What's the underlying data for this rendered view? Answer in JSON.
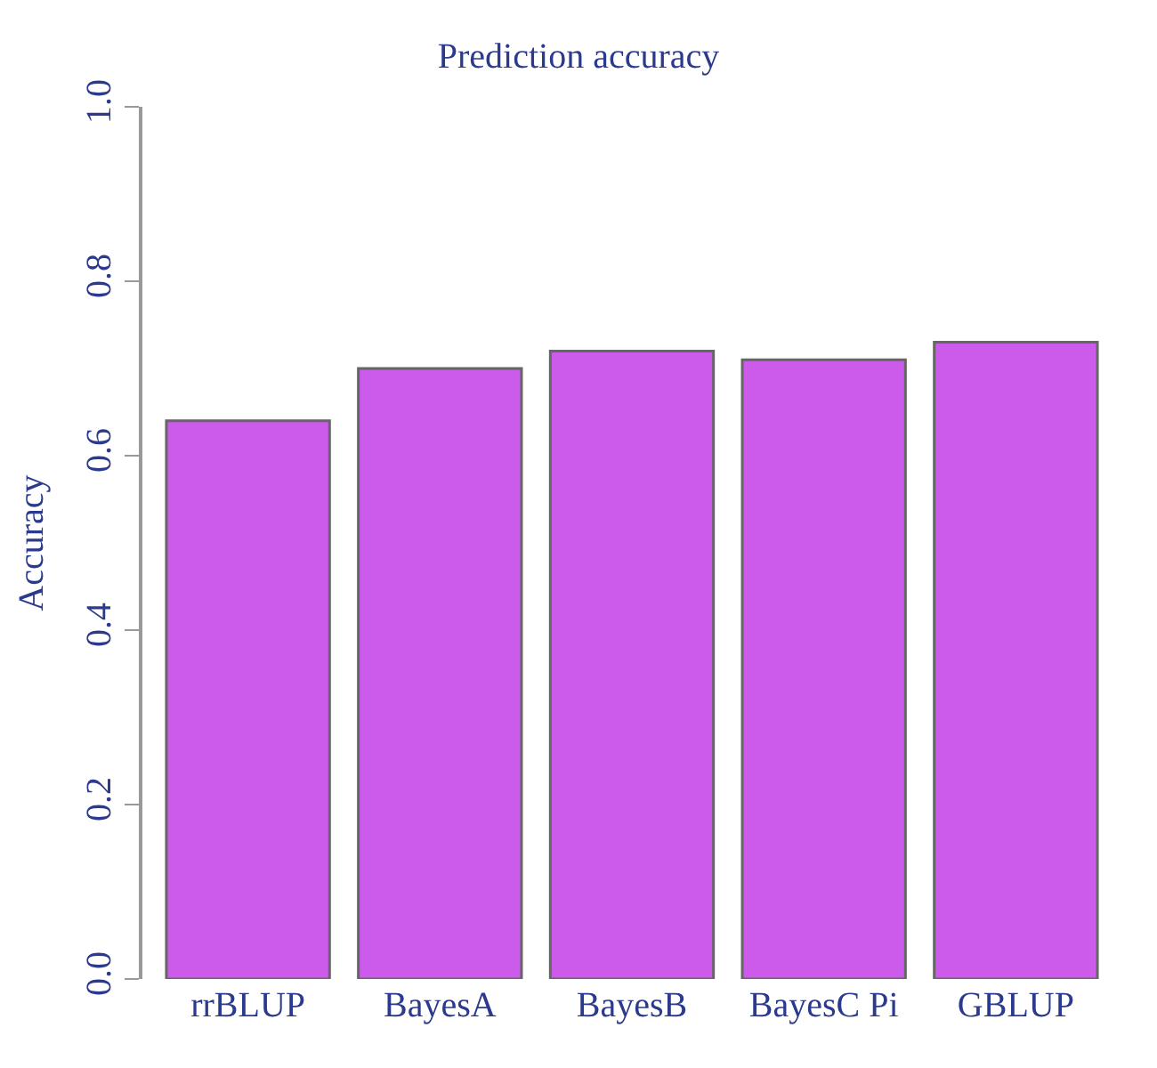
{
  "chart_data": {
    "type": "bar",
    "title": "Prediction accuracy",
    "ylabel": "Accuracy",
    "categories": [
      "rrBLUP",
      "BayesA",
      "BayesB",
      "BayesC Pi",
      "GBLUP"
    ],
    "values": [
      0.64,
      0.7,
      0.72,
      0.71,
      0.73
    ],
    "color": "#cc5aeb",
    "ylim": [
      0,
      1
    ],
    "yticks": [
      {
        "value": 0,
        "label": "0.0"
      },
      0.2,
      0.4,
      0.6,
      0.8,
      {
        "value": 1,
        "label": "1.0"
      }
    ]
  }
}
